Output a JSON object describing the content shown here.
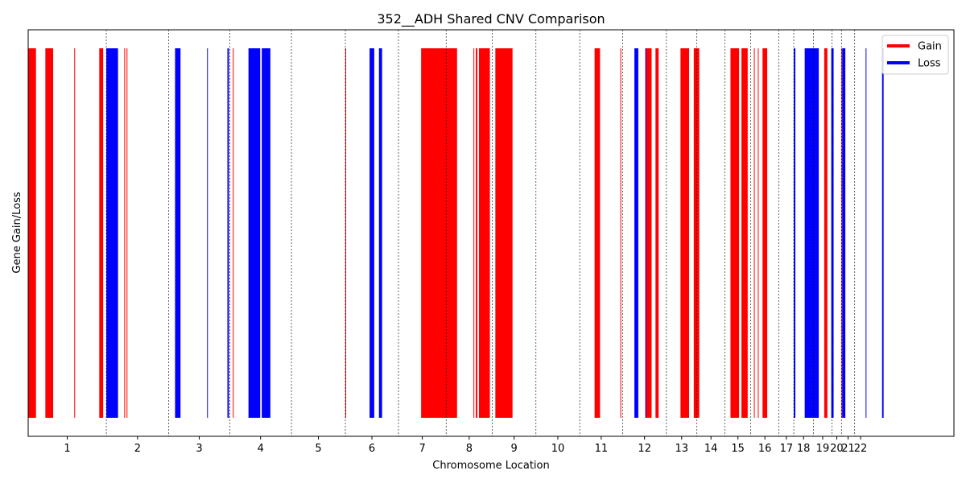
{
  "chart_data": {
    "type": "bar",
    "title": "352__ADH Shared CNV Comparison",
    "xlabel": "Chromosome Location",
    "ylabel": "Gene Gain/Loss",
    "chromosomes": [
      {
        "label": "1",
        "start": 0,
        "end": 1.0
      },
      {
        "label": "2",
        "start": 1.0,
        "end": 1.8
      },
      {
        "label": "3",
        "start": 1.8,
        "end": 2.58
      },
      {
        "label": "4",
        "start": 2.58,
        "end": 3.37
      },
      {
        "label": "5",
        "start": 3.37,
        "end": 4.06
      },
      {
        "label": "6",
        "start": 4.06,
        "end": 4.74
      },
      {
        "label": "7",
        "start": 4.74,
        "end": 5.35
      },
      {
        "label": "8",
        "start": 5.35,
        "end": 5.94
      },
      {
        "label": "9",
        "start": 5.94,
        "end": 6.5
      },
      {
        "label": "10",
        "start": 6.5,
        "end": 7.06
      },
      {
        "label": "11",
        "start": 7.06,
        "end": 7.61
      },
      {
        "label": "12",
        "start": 7.61,
        "end": 8.17
      },
      {
        "label": "13",
        "start": 8.17,
        "end": 8.56
      },
      {
        "label": "14",
        "start": 8.56,
        "end": 8.92
      },
      {
        "label": "15",
        "start": 8.92,
        "end": 9.25
      },
      {
        "label": "16",
        "start": 9.25,
        "end": 9.61
      },
      {
        "label": "17",
        "start": 9.61,
        "end": 9.8
      },
      {
        "label": "18",
        "start": 9.8,
        "end": 10.05
      },
      {
        "label": "19",
        "start": 10.05,
        "end": 10.29
      },
      {
        "label": "20",
        "start": 10.29,
        "end": 10.41
      },
      {
        "label": "21",
        "start": 10.41,
        "end": 10.58
      },
      {
        "label": "22",
        "start": 10.58,
        "end": 10.73
      }
    ],
    "xlim": [
      0,
      11.85
    ],
    "series": [
      {
        "name": "Gain",
        "color": "#ff0000",
        "regions": [
          [
            0.0,
            0.1
          ],
          [
            0.22,
            0.32
          ],
          [
            0.59,
            0.6
          ],
          [
            0.91,
            0.96
          ],
          [
            1.23,
            1.24
          ],
          [
            1.26,
            1.27
          ],
          [
            2.62,
            2.63
          ],
          [
            4.06,
            4.07
          ],
          [
            5.03,
            5.49
          ],
          [
            5.7,
            5.71
          ],
          [
            5.73,
            5.75
          ],
          [
            5.77,
            5.91
          ],
          [
            5.98,
            6.2
          ],
          [
            7.25,
            7.32
          ],
          [
            7.58,
            7.59
          ],
          [
            7.9,
            7.98
          ],
          [
            8.03,
            8.07
          ],
          [
            8.35,
            8.46
          ],
          [
            8.52,
            8.59
          ],
          [
            8.99,
            9.1
          ],
          [
            9.13,
            9.21
          ],
          [
            9.29,
            9.3
          ],
          [
            9.34,
            9.35
          ],
          [
            9.4,
            9.46
          ],
          [
            10.19,
            10.23
          ],
          [
            10.41,
            10.42
          ]
        ]
      },
      {
        "name": "Loss",
        "color": "#0000ff",
        "regions": [
          [
            1.0,
            1.15
          ],
          [
            1.88,
            1.95
          ],
          [
            2.29,
            2.3
          ],
          [
            2.55,
            2.57
          ],
          [
            2.82,
            2.97
          ],
          [
            2.99,
            3.1
          ],
          [
            4.37,
            4.43
          ],
          [
            4.49,
            4.53
          ],
          [
            7.76,
            7.81
          ],
          [
            7.9,
            7.91
          ],
          [
            9.8,
            9.81
          ],
          [
            9.81,
            9.82
          ],
          [
            9.94,
            10.12
          ],
          [
            10.28,
            10.31
          ],
          [
            10.42,
            10.46
          ],
          [
            10.72,
            10.73
          ],
          [
            10.93,
            10.95
          ]
        ]
      }
    ],
    "legend": {
      "position": "top-right",
      "entries": [
        "Gain",
        "Loss"
      ]
    },
    "grid": "vertical dashed lines at chromosome boundaries"
  }
}
